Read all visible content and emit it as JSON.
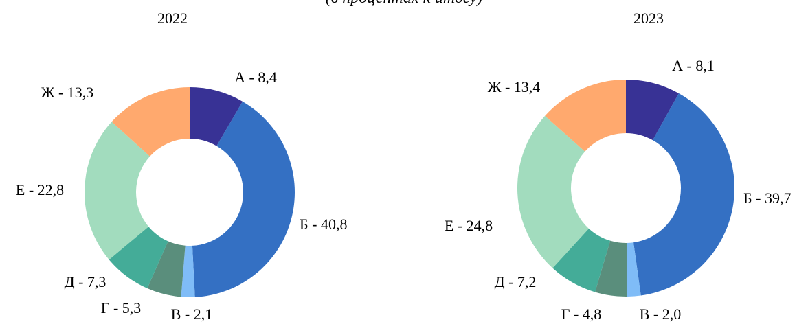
{
  "header_fragment": "(в процентах к итогу)",
  "chart_data": [
    {
      "type": "pie",
      "donut": true,
      "title": "2022",
      "slices": [
        {
          "label": "А",
          "value": 8.4,
          "value_text": "8,4",
          "color": "#383295"
        },
        {
          "label": "Б",
          "value": 40.8,
          "value_text": "40,8",
          "color": "#3470C3"
        },
        {
          "label": "В",
          "value": 2.1,
          "value_text": "2,1",
          "color": "#7FBCF7"
        },
        {
          "label": "Г",
          "value": 5.3,
          "value_text": "5,3",
          "color": "#5A8E7C"
        },
        {
          "label": "Д",
          "value": 7.3,
          "value_text": "7,3",
          "color": "#44AC98"
        },
        {
          "label": "Е",
          "value": 22.8,
          "value_text": "22,8",
          "color": "#A2DCBE"
        },
        {
          "label": "Ж",
          "value": 13.3,
          "value_text": "13,3",
          "color": "#FFA96E"
        }
      ]
    },
    {
      "type": "pie",
      "donut": true,
      "title": "2023",
      "slices": [
        {
          "label": "А",
          "value": 8.1,
          "value_text": "8,1",
          "color": "#383295"
        },
        {
          "label": "Б",
          "value": 39.7,
          "value_text": "39,7",
          "color": "#3470C3"
        },
        {
          "label": "В",
          "value": 2.0,
          "value_text": "2,0",
          "color": "#7FBCF7"
        },
        {
          "label": "Г",
          "value": 4.8,
          "value_text": "4,8",
          "color": "#5A8E7C"
        },
        {
          "label": "Д",
          "value": 7.2,
          "value_text": "7,2",
          "color": "#44AC98"
        },
        {
          "label": "Е",
          "value": 24.8,
          "value_text": "24,8",
          "color": "#A2DCBE"
        },
        {
          "label": "Ж",
          "value": 13.4,
          "value_text": "13,4",
          "color": "#FFA96E"
        }
      ]
    }
  ]
}
